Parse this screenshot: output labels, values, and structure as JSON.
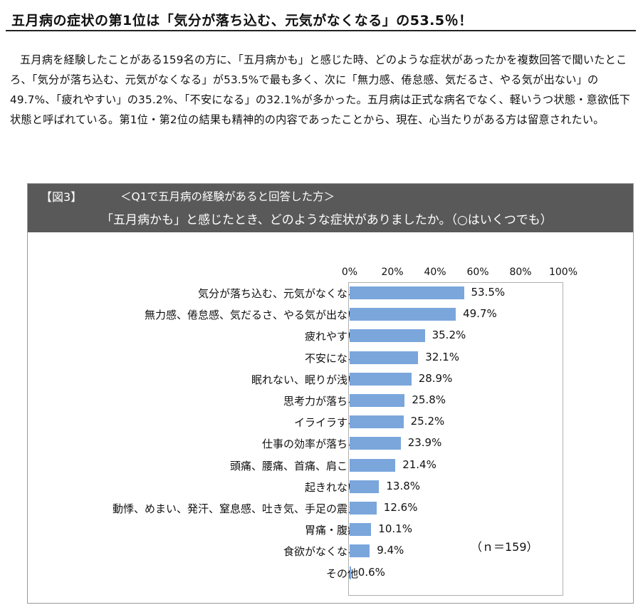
{
  "headline": "五月病の症状の第1位は「気分が落ち込む、元気がなくなる」の53.5％！",
  "body_text": "五月病を経験したことがある159名の方に、「五月病かも」と感じた時、どのような症状があったかを複数回答で聞いたところ、「気分が落ち込む、元気がなくなる」が53.5%で最も多く、次に「無力感、倦怠感、気だるさ、やる気が出ない」の49.7%、「疲れやすい」の35.2%、「不安になる」の32.1%が多かった。五月病は正式な病名でなく、軽いうつ状態・意欲低下状態と呼ばれている。第1位・第2位の結果も精神的の内容であったことから、現在、心当たりがある方は留意されたい。",
  "figure": {
    "label": "【図3】",
    "subtitle": "＜Q1で五月病の経験があると回答した方＞",
    "question": "「五月病かも」と感じたとき、どのような症状がありましたか。（○はいくつでも）",
    "n_note": "（ｎ＝159）",
    "header_color": "#595959"
  },
  "chart_data": {
    "type": "bar",
    "orientation": "horizontal",
    "x_ticks": [
      "0%",
      "20%",
      "40%",
      "60%",
      "80%",
      "100%"
    ],
    "xlim": [
      0,
      100
    ],
    "bar_color": "#7aa6dc",
    "categories": [
      "気分が落ち込む、元気がなくなる",
      "無力感、倦怠感、気だるさ、やる気が出ない",
      "疲れやすい",
      "不安になる",
      "眠れない、眠りが浅い",
      "思考力が落ちる",
      "イライラする",
      "仕事の効率が落ちる",
      "頭痛、腰痛、首痛、肩こり",
      "起きれない",
      "動悸、めまい、発汗、窒息感、吐き気、手足の震え",
      "胃痛・腹痛",
      "食欲がなくなる",
      "その他"
    ],
    "values": [
      53.5,
      49.7,
      35.2,
      32.1,
      28.9,
      25.8,
      25.2,
      23.9,
      21.4,
      13.8,
      12.6,
      10.1,
      9.4,
      0.6
    ],
    "value_labels": [
      "53.5%",
      "49.7%",
      "35.2%",
      "32.1%",
      "28.9%",
      "25.8%",
      "25.2%",
      "23.9%",
      "21.4%",
      "13.8%",
      "12.6%",
      "10.1%",
      "9.4%",
      "0.6%"
    ]
  }
}
